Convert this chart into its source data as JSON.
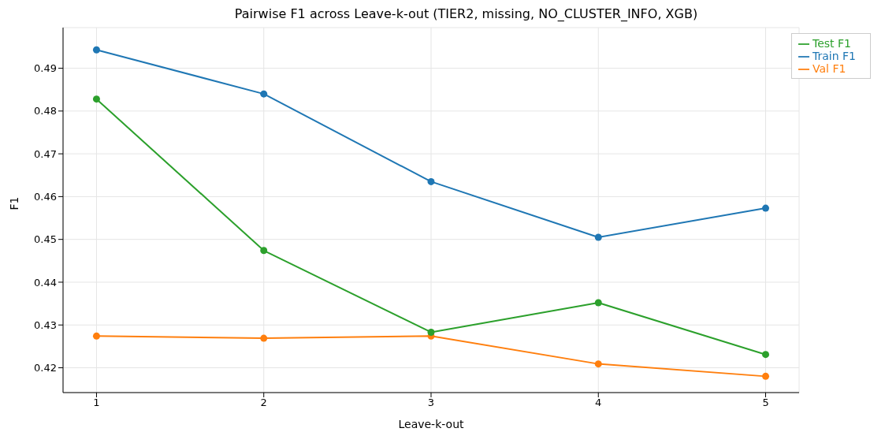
{
  "chart_data": {
    "type": "line",
    "title": "Pairwise F1 across Leave-k-out (TIER2, missing, NO_CLUSTER_INFO, XGB)",
    "xlabel": "Leave-k-out",
    "ylabel": "F1",
    "x": [
      1,
      2,
      3,
      4,
      5
    ],
    "series": [
      {
        "name": "Train F1",
        "color": "#1f77b4",
        "values": [
          0.4943,
          0.484,
          0.4635,
          0.4505,
          0.4573
        ]
      },
      {
        "name": "Val F1",
        "color": "#ff7f0e",
        "values": [
          0.4274,
          0.4269,
          0.4274,
          0.4209,
          0.418
        ]
      },
      {
        "name": "Test F1",
        "color": "#2ca02c",
        "values": [
          0.4828,
          0.4474,
          0.4283,
          0.4352,
          0.4231
        ]
      }
    ],
    "xlim": [
      0.8,
      5.2
    ],
    "xticks": [
      1,
      2,
      3,
      4,
      5
    ],
    "ylim": [
      0.4142,
      0.4995
    ],
    "yticks": [
      0.42,
      0.43,
      0.44,
      0.45,
      0.46,
      0.47,
      0.48,
      0.49
    ],
    "grid": true,
    "legend": "top right",
    "marker": "circle",
    "line_style": "solid"
  }
}
